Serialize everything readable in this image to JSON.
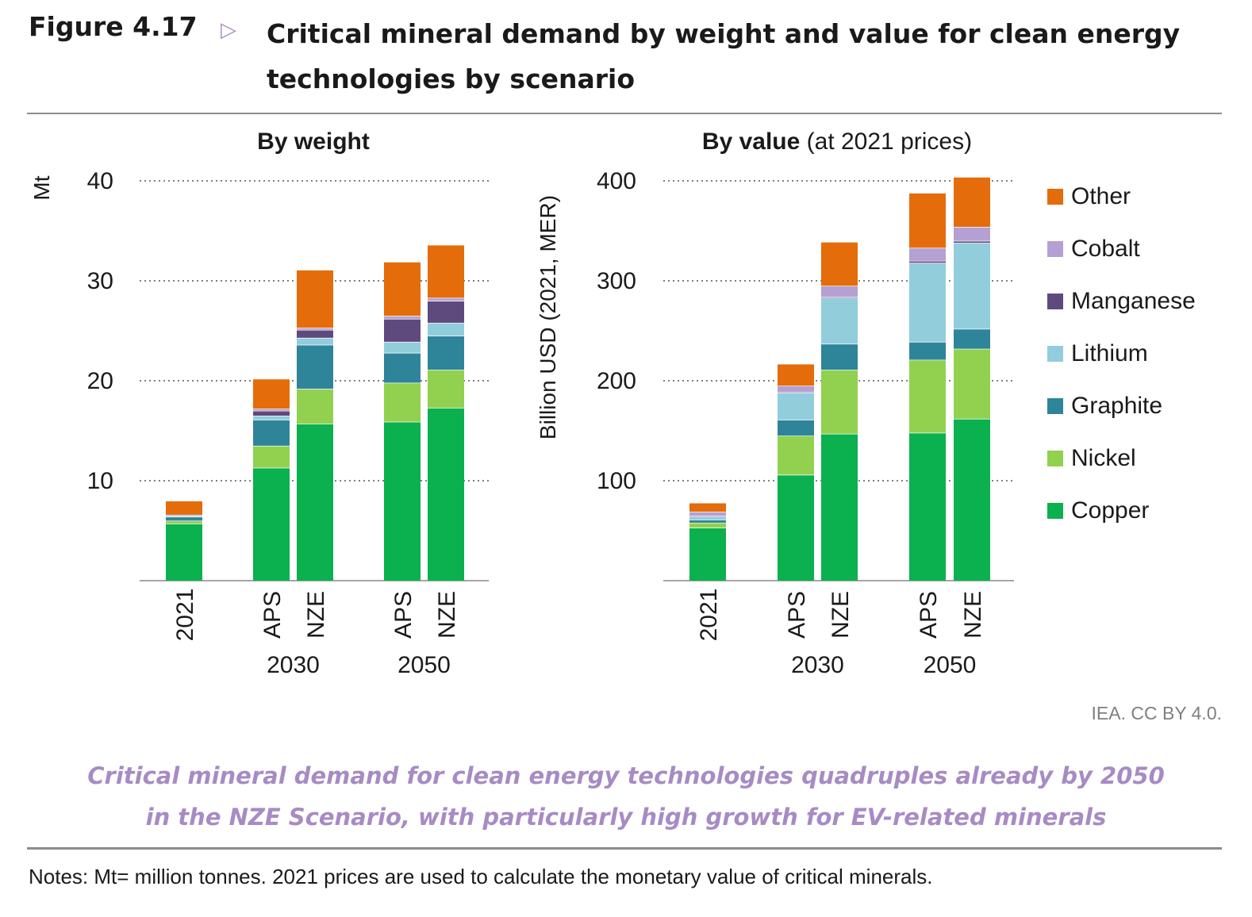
{
  "header": {
    "figure_label": "Figure 4.17",
    "arrow": "▷",
    "title": "Critical mineral demand by weight and value for clean energy technologies by scenario"
  },
  "footer": {
    "source": "IEA. CC BY 4.0.",
    "caption_line1": "Critical mineral demand for clean energy technologies quadruples already by 2050",
    "caption_line2": "in the NZE Scenario, with particularly high growth for EV-related minerals",
    "notes": "Notes: Mt= million tonnes. 2021 prices are used to calculate the monetary value of critical minerals."
  },
  "colors": {
    "Copper": "#0bb04f",
    "Nickel": "#92d050",
    "Graphite": "#2e8599",
    "Lithium": "#92cddc",
    "Manganese": "#5f4a7e",
    "Cobalt": "#b4a0d2",
    "Other": "#e46c0a",
    "accent": "#a78bc4",
    "grid": "#7f7f7f"
  },
  "legend": [
    "Other",
    "Cobalt",
    "Manganese",
    "Lithium",
    "Graphite",
    "Nickel",
    "Copper"
  ],
  "chart_data": [
    {
      "type": "bar",
      "stacked": true,
      "title": "By weight",
      "title_suffix": "",
      "ylabel": "Mt",
      "ylim": [
        0,
        40
      ],
      "yticks": [
        10,
        20,
        30,
        40
      ],
      "grid": "horizontal dotted",
      "categories": [
        "2021",
        "APS",
        "NZE",
        "APS",
        "NZE"
      ],
      "groups": [
        {
          "label": "",
          "members": [
            0
          ]
        },
        {
          "label": "2030",
          "members": [
            1,
            2
          ]
        },
        {
          "label": "2050",
          "members": [
            3,
            4
          ]
        }
      ],
      "series": [
        {
          "name": "Copper",
          "values": [
            5.7,
            11.3,
            15.7,
            15.9,
            17.3
          ]
        },
        {
          "name": "Nickel",
          "values": [
            0.3,
            2.2,
            3.5,
            3.9,
            3.8
          ]
        },
        {
          "name": "Graphite",
          "values": [
            0.4,
            2.6,
            4.4,
            3.0,
            3.4
          ]
        },
        {
          "name": "Lithium",
          "values": [
            0.1,
            0.4,
            0.7,
            1.1,
            1.3
          ]
        },
        {
          "name": "Manganese",
          "values": [
            0.1,
            0.5,
            0.8,
            2.3,
            2.2
          ]
        },
        {
          "name": "Cobalt",
          "values": [
            0.0,
            0.2,
            0.2,
            0.3,
            0.3
          ]
        },
        {
          "name": "Other",
          "values": [
            1.4,
            3.0,
            5.8,
            5.4,
            5.3
          ]
        }
      ]
    },
    {
      "type": "bar",
      "stacked": true,
      "title": "By value",
      "title_suffix": " (at 2021 prices)",
      "ylabel": "Billion USD (2021, MER)",
      "ylim": [
        0,
        400
      ],
      "yticks": [
        100,
        200,
        300,
        400
      ],
      "grid": "horizontal dotted",
      "categories": [
        "2021",
        "APS",
        "NZE",
        "APS",
        "NZE"
      ],
      "groups": [
        {
          "label": "",
          "members": [
            0
          ]
        },
        {
          "label": "2030",
          "members": [
            1,
            2
          ]
        },
        {
          "label": "2050",
          "members": [
            3,
            4
          ]
        }
      ],
      "series": [
        {
          "name": "Copper",
          "values": [
            53,
            106,
            147,
            148,
            162
          ]
        },
        {
          "name": "Nickel",
          "values": [
            5,
            39,
            64,
            73,
            70
          ]
        },
        {
          "name": "Graphite",
          "values": [
            3,
            16,
            26,
            18,
            20
          ]
        },
        {
          "name": "Lithium",
          "values": [
            3,
            27,
            46,
            79,
            86
          ]
        },
        {
          "name": "Manganese",
          "values": [
            1,
            1,
            1,
            2,
            2
          ]
        },
        {
          "name": "Cobalt",
          "values": [
            4,
            6,
            11,
            13,
            14
          ]
        },
        {
          "name": "Other",
          "values": [
            9,
            22,
            44,
            55,
            50
          ]
        }
      ]
    }
  ]
}
